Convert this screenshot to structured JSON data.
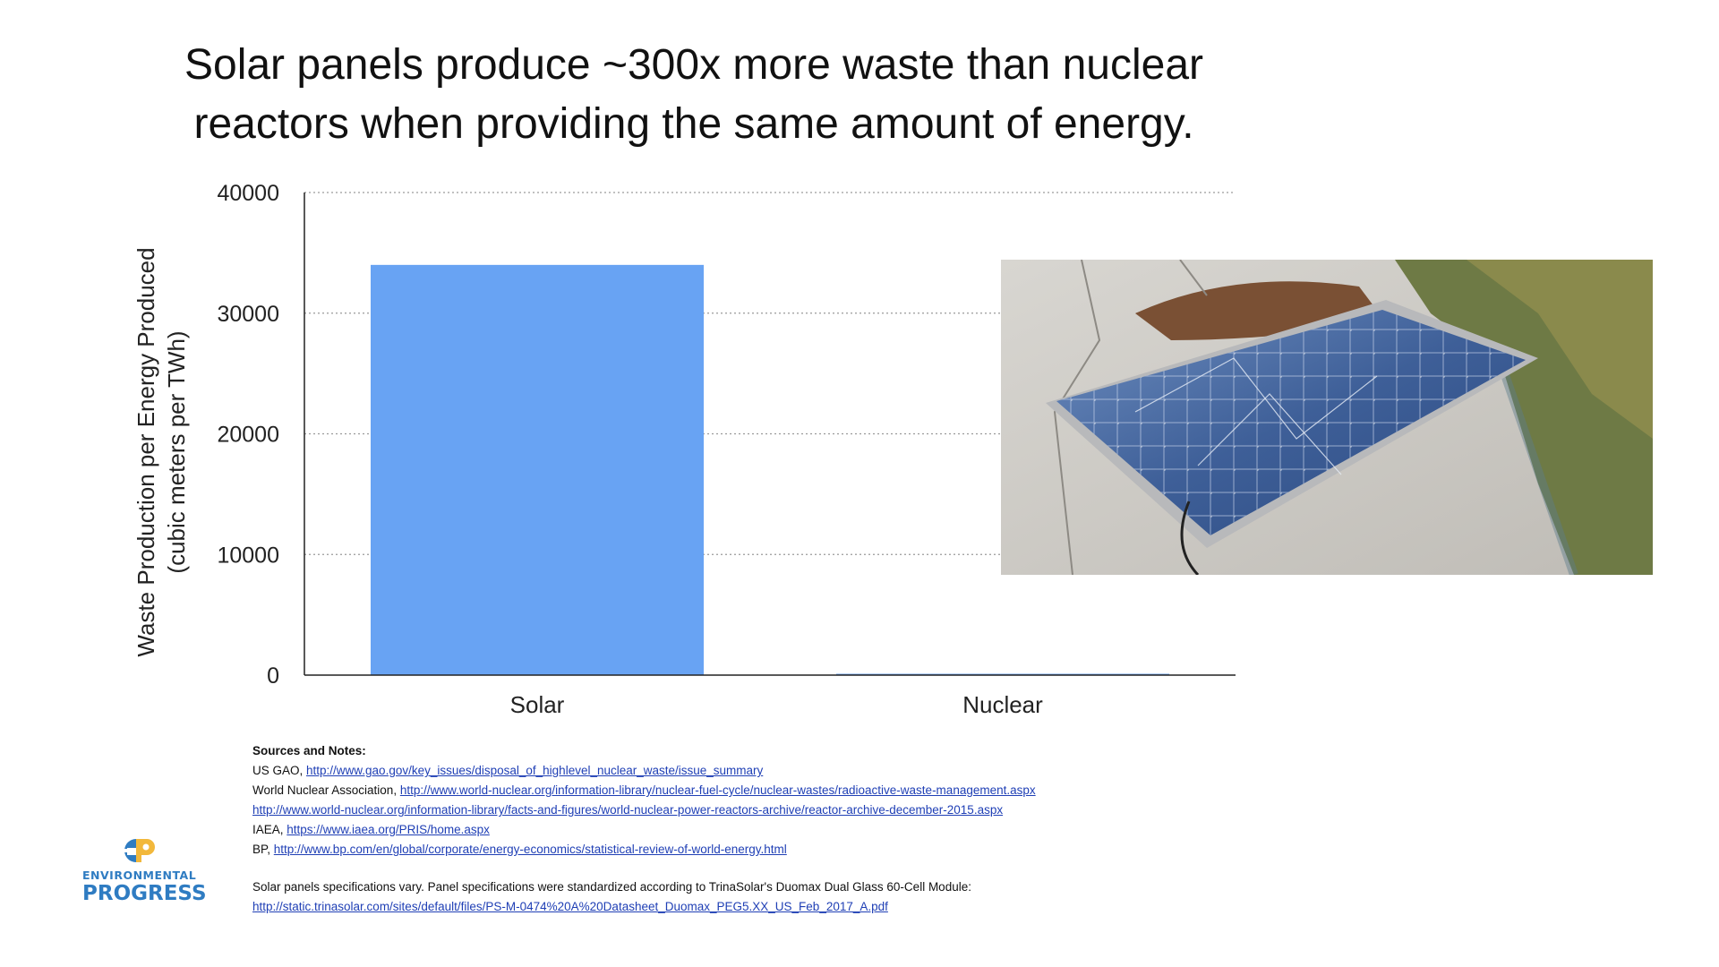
{
  "title": {
    "line1": "Solar panels produce ~300x more waste than nuclear",
    "line2": "reactors when providing the same amount of energy."
  },
  "chart_data": {
    "type": "bar",
    "categories": [
      "Solar",
      "Nuclear"
    ],
    "values": [
      34000,
      110
    ],
    "title": "",
    "xlabel": "",
    "ylabel": "Waste Production per Energy Produced",
    "ylabel_unit": "(cubic meters per TWh)",
    "ylim": [
      0,
      40000
    ],
    "yticks": [
      "0",
      "10000",
      "20000",
      "30000",
      "40000"
    ],
    "grid": true,
    "legend": "none",
    "bar_color": "#68a3f3",
    "gridline_color": "#9a9a9a"
  },
  "photo": {
    "subject": "broken-solar-panel-photo"
  },
  "sources": {
    "heading": "Sources and Notes:",
    "lines": [
      {
        "prefix": "US GAO, ",
        "link": "http://www.gao.gov/key_issues/disposal_of_highlevel_nuclear_waste/issue_summary"
      },
      {
        "prefix": "World Nuclear Association, ",
        "link": "http://www.world-nuclear.org/information-library/nuclear-fuel-cycle/nuclear-wastes/radioactive-waste-management.aspx"
      },
      {
        "prefix": "",
        "link": "http://www.world-nuclear.org/information-library/facts-and-figures/world-nuclear-power-reactors-archive/reactor-archive-december-2015.aspx"
      },
      {
        "prefix": "IAEA, ",
        "link": "https://www.iaea.org/PRIS/home.aspx"
      },
      {
        "prefix": "BP, ",
        "link": "http://www.bp.com/en/global/corporate/energy-economics/statistical-review-of-world-energy.html"
      }
    ],
    "note": "Solar panels specifications vary. Panel specifications were standardized according to TrinaSolar's Duomax Dual Glass 60-Cell Module:",
    "note_link": "http://static.trinasolar.com/sites/default/files/PS-M-0474%20A%20Datasheet_Duomax_PEG5.XX_US_Feb_2017_A.pdf"
  },
  "logo": {
    "line1": "ENVIRONMENTAL",
    "line2": "PROGRESS",
    "primary_color": "#2f7cc2",
    "accent_color": "#f2b83b"
  }
}
